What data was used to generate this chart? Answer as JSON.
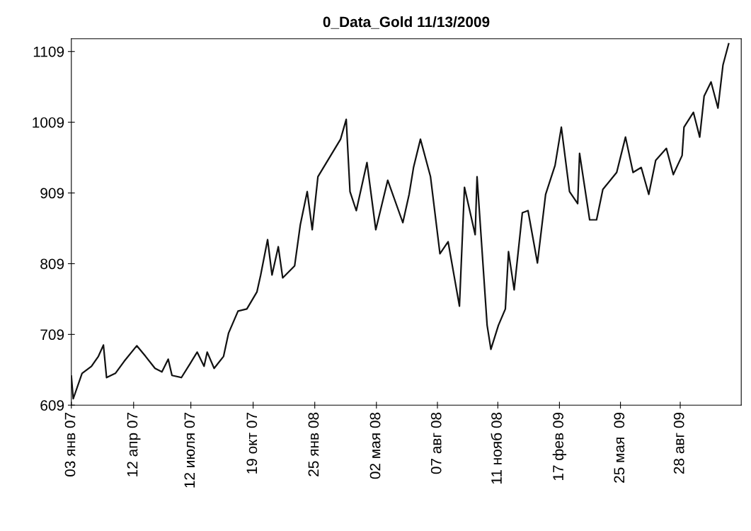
{
  "chart_data": {
    "type": "line",
    "title": "0_Data_Gold 11/13/2009",
    "x": [
      "2007-01-03",
      "2007-01-06",
      "2007-01-20",
      "2007-02-04",
      "2007-02-15",
      "2007-02-23",
      "2007-02-28",
      "2007-03-14",
      "2007-03-28",
      "2007-04-17",
      "2007-05-01",
      "2007-05-16",
      "2007-05-27",
      "2007-06-06",
      "2007-06-12",
      "2007-06-27",
      "2007-07-11",
      "2007-07-22",
      "2007-08-02",
      "2007-08-07",
      "2007-08-18",
      "2007-09-02",
      "2007-09-10",
      "2007-09-25",
      "2007-10-09",
      "2007-10-25",
      "2007-10-31",
      "2007-11-11",
      "2007-11-18",
      "2007-11-28",
      "2007-12-05",
      "2007-12-24",
      "2008-01-02",
      "2008-01-13",
      "2008-01-21",
      "2008-01-30",
      "2008-03-06",
      "2008-03-15",
      "2008-03-21",
      "2008-03-31",
      "2008-04-17",
      "2008-05-01",
      "2008-05-20",
      "2008-06-13",
      "2008-06-23",
      "2008-06-30",
      "2008-07-11",
      "2008-07-27",
      "2008-08-11",
      "2008-08-24",
      "2008-09-11",
      "2008-09-19",
      "2008-10-06",
      "2008-10-09",
      "2008-10-25",
      "2008-10-31",
      "2008-11-12",
      "2008-11-23",
      "2008-11-28",
      "2008-12-07",
      "2008-12-20",
      "2008-12-29",
      "2009-01-13",
      "2009-01-26",
      "2009-02-10",
      "2009-02-20",
      "2009-03-05",
      "2009-03-18",
      "2009-03-21",
      "2009-04-06",
      "2009-04-17",
      "2009-04-27",
      "2009-05-19",
      "2009-06-02",
      "2009-06-14",
      "2009-06-27",
      "2009-07-09",
      "2009-07-20",
      "2009-08-06",
      "2009-08-17",
      "2009-08-31",
      "2009-09-03",
      "2009-09-18",
      "2009-09-28",
      "2009-10-05",
      "2009-10-16",
      "2009-10-27",
      "2009-11-04",
      "2009-11-13"
    ],
    "series": [
      {
        "color": "#111111",
        "values": [
          650,
          618,
          654,
          664,
          678,
          694,
          648,
          654,
          671,
          693,
          678,
          661,
          656,
          674,
          651,
          648,
          668,
          684,
          664,
          684,
          661,
          678,
          711,
          742,
          745,
          769,
          793,
          843,
          793,
          833,
          789,
          806,
          864,
          911,
          857,
          932,
          985,
          1013,
          911,
          884,
          952,
          857,
          927,
          867,
          907,
          945,
          985,
          932,
          823,
          840,
          749,
          917,
          850,
          932,
          722,
          688,
          722,
          745,
          826,
          772,
          881,
          884,
          810,
          907,
          948,
          1002,
          911,
          894,
          965,
          871,
          871,
          914,
          938,
          988,
          938,
          945,
          907,
          955,
          972,
          935,
          962,
          1002,
          1023,
          988,
          1046,
          1066,
          1029,
          1090,
          1120
        ]
      }
    ],
    "xlim": [
      "2007-01-03",
      "2009-12-03"
    ],
    "xticks": [
      {
        "value": "2007-01-03",
        "label": "03 янв 07"
      },
      {
        "value": "2007-04-12",
        "label": "12 апр 07"
      },
      {
        "value": "2007-07-12",
        "label": "12 июля 07"
      },
      {
        "value": "2007-10-19",
        "label": "19 окт 07"
      },
      {
        "value": "2008-01-25",
        "label": "25 янв 08"
      },
      {
        "value": "2008-05-02",
        "label": "02 мая 08"
      },
      {
        "value": "2008-08-07",
        "label": "07 авг 08"
      },
      {
        "value": "2008-11-11",
        "label": "11 нояб 08"
      },
      {
        "value": "2009-02-17",
        "label": "17 фев 09"
      },
      {
        "value": "2009-05-25",
        "label": "25 мая  09"
      },
      {
        "value": "2009-08-28",
        "label": "28 авг 09"
      }
    ],
    "ylim": [
      609,
      1127
    ],
    "yticks": [
      609,
      709,
      809,
      909,
      1009,
      1109
    ],
    "grid": false,
    "marker": "none",
    "line_style": "solid"
  }
}
